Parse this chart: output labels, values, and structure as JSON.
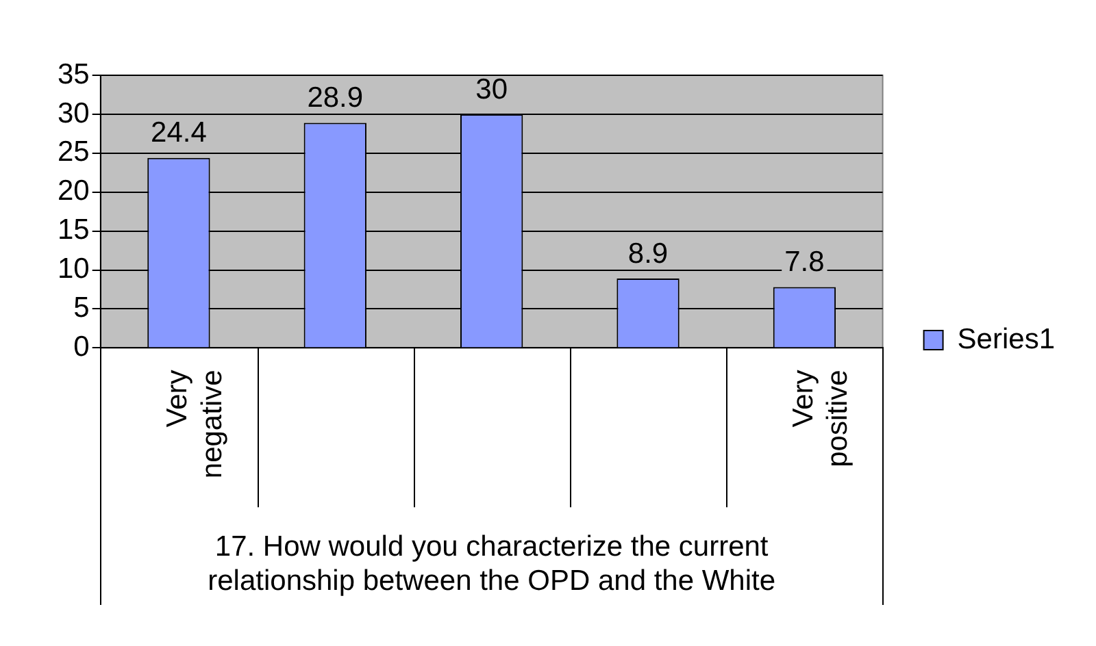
{
  "chart_data": {
    "type": "bar",
    "xlabel": "17. How would you characterize the current relationship between the OPD and the White",
    "categories": [
      "Very negative",
      null,
      null,
      null,
      "Very positive"
    ],
    "series": [
      {
        "name": "Series1",
        "color": "#8899ff",
        "values": [
          24.4,
          28.9,
          30,
          8.9,
          7.8
        ]
      }
    ],
    "ylim": [
      0,
      35
    ],
    "yticks": [
      0,
      5,
      10,
      15,
      20,
      25,
      30,
      35
    ],
    "grid": "y",
    "legend": "right",
    "data_labels": true
  }
}
